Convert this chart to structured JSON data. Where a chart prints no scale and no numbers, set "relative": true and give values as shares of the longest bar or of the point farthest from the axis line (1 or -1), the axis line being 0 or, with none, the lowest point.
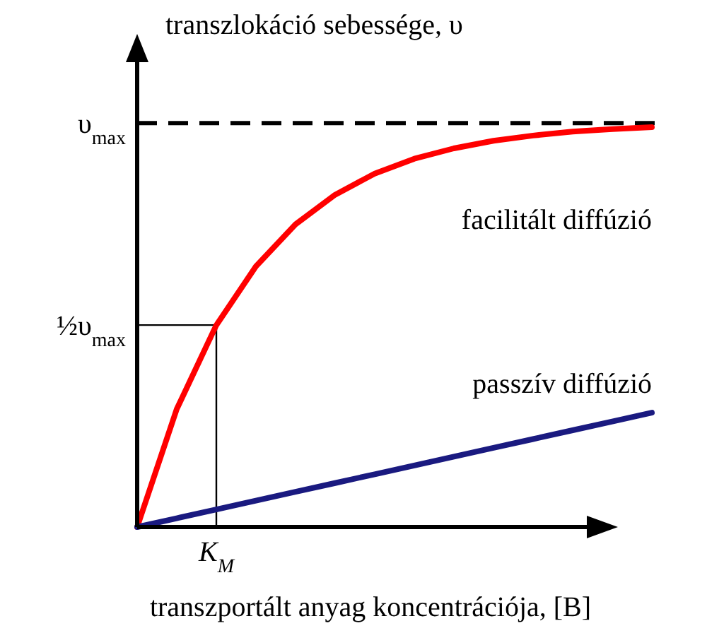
{
  "chart_data": {
    "type": "line",
    "relative": true,
    "title": "transzlokáció sebessége, υ",
    "xlabel": "transzportált anyag koncentrációja, [B]",
    "categories": [
      null,
      null,
      null,
      null,
      null,
      null,
      null,
      null,
      null,
      null,
      null,
      null,
      null,
      null
    ],
    "series": [
      {
        "name": "facilitált diffúzió",
        "color": "#ff0000",
        "values": [
          0,
          0.295,
          0.505,
          0.652,
          0.757,
          0.831,
          0.884,
          0.921,
          0.947,
          0.966,
          0.979,
          0.989,
          0.995,
          1
        ]
      },
      {
        "name": "passzív diffúzió",
        "color": "#1a1a80",
        "values": [
          0,
          0.022,
          0.044,
          0.066,
          0.088,
          0.11,
          0.132,
          0.154,
          0.176,
          0.198,
          0.22,
          0.242,
          0.264,
          0.286
        ]
      }
    ],
    "ref_lines": [
      {
        "axis": "y",
        "value": 1.01,
        "label": "υ$_{max}$",
        "line_style": "dashed",
        "color": "#000000"
      },
      {
        "axis": "y",
        "value": 0.505,
        "label": "½υ$_{max}$",
        "line_style": "solid",
        "color": "#000000"
      }
    ],
    "annotations": [
      "K$_{M}$"
    ],
    "marker": "none",
    "line_style": "solid"
  }
}
